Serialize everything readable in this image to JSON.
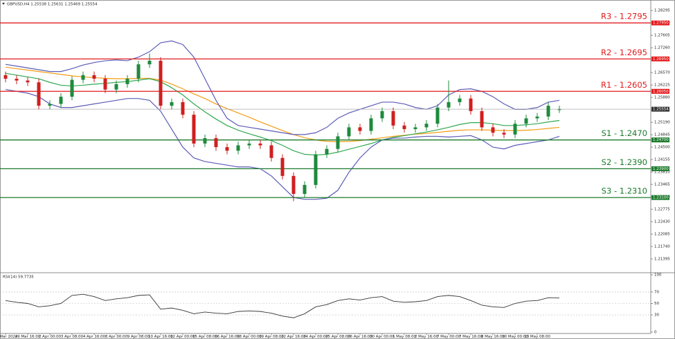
{
  "chart_data": [
    {
      "type": "candlestick",
      "title": "GBPUSD,H4  1.25538 1.25631 1.25469 1.25554",
      "categories": [
        "28 Mar 2024",
        null,
        "29 Mar 16:00",
        null,
        "2 Apr 00:00",
        null,
        "3 Apr 08:00",
        null,
        "4 Apr 16:00",
        null,
        "8 Apr 00:00",
        null,
        "9 Apr 08:00",
        null,
        "10 Apr 16:00",
        null,
        "12 Apr 00:00",
        null,
        "15 Apr 08:00",
        null,
        "16 Apr 16:00",
        null,
        "18 Apr 00:00",
        null,
        "19 Apr 08:00",
        null,
        "22 Apr 16:00",
        null,
        "24 Apr 00:00",
        null,
        "25 Apr 08:00",
        null,
        "26 Apr 16:00",
        null,
        "30 Apr 00:00",
        null,
        "1 May 08:00",
        null,
        "2 May 16:00",
        null,
        "7 May 00:00",
        null,
        "7 May 16:00",
        null,
        "8 May 16:00",
        null,
        "10 May 00:00",
        null,
        "13 May 08:00",
        null,
        null
      ],
      "open": [
        1.265,
        1.264,
        1.2635,
        1.263,
        1.2565,
        1.257,
        1.259,
        1.2637,
        1.265,
        1.264,
        1.261,
        1.2625,
        1.264,
        1.268,
        1.269,
        1.2565,
        1.2575,
        1.254,
        1.246,
        1.2475,
        1.245,
        1.244,
        1.2455,
        1.246,
        1.2455,
        1.242,
        1.237,
        1.232,
        1.2345,
        1.243,
        1.2445,
        1.248,
        1.2505,
        1.2495,
        1.253,
        1.255,
        1.251,
        1.25,
        1.2505,
        1.2515,
        1.256,
        1.2575,
        1.2585,
        1.255,
        1.2505,
        1.249,
        1.2485,
        1.2515,
        1.253,
        1.2535,
        1.2554
      ],
      "high": [
        1.266,
        1.265,
        1.2645,
        1.264,
        1.258,
        1.26,
        1.2647,
        1.266,
        1.266,
        1.265,
        1.2635,
        1.265,
        1.269,
        1.271,
        1.27,
        1.2585,
        1.2585,
        1.255,
        1.2485,
        1.2485,
        1.246,
        1.2465,
        1.247,
        1.247,
        1.2465,
        1.243,
        1.238,
        1.2355,
        1.244,
        1.2455,
        1.249,
        1.2515,
        1.2515,
        1.254,
        1.256,
        1.256,
        1.252,
        1.2515,
        1.2525,
        1.257,
        1.2635,
        1.2595,
        1.2595,
        1.256,
        1.2515,
        1.25,
        1.2525,
        1.254,
        1.2545,
        1.2575,
        1.2565
      ],
      "low": [
        1.263,
        1.2625,
        1.262,
        1.2555,
        1.2555,
        1.256,
        1.258,
        1.2627,
        1.263,
        1.26,
        1.26,
        1.2615,
        1.263,
        1.267,
        1.2555,
        1.2555,
        1.253,
        1.245,
        1.245,
        1.244,
        1.243,
        1.243,
        1.2445,
        1.2445,
        1.241,
        1.236,
        1.23,
        1.231,
        1.2335,
        1.242,
        1.2435,
        1.247,
        1.2485,
        1.2485,
        1.252,
        1.25,
        1.249,
        1.249,
        1.2495,
        1.2505,
        1.255,
        1.2565,
        1.254,
        1.2495,
        1.248,
        1.2475,
        1.2475,
        1.2505,
        1.252,
        1.2525,
        1.2545
      ],
      "close": [
        1.264,
        1.2635,
        1.263,
        1.2565,
        1.257,
        1.259,
        1.2637,
        1.265,
        1.264,
        1.261,
        1.2625,
        1.264,
        1.268,
        1.269,
        1.2565,
        1.2575,
        1.254,
        1.246,
        1.2475,
        1.245,
        1.244,
        1.2455,
        1.246,
        1.2455,
        1.242,
        1.237,
        1.232,
        1.2345,
        1.243,
        1.2445,
        1.248,
        1.2505,
        1.2495,
        1.253,
        1.255,
        1.251,
        1.25,
        1.2505,
        1.2515,
        1.256,
        1.2575,
        1.2585,
        1.255,
        1.2505,
        1.249,
        1.2485,
        1.2515,
        1.253,
        1.2535,
        1.2565,
        1.2555
      ],
      "up_color": "#1e8a3c",
      "down_color": "#d01f1f",
      "series": [
        {
          "color": "#f39c12",
          "values": [
            1.2672,
            1.2668,
            1.2664,
            1.266,
            1.2656,
            1.2652,
            1.2648,
            1.2645,
            1.2643,
            1.2641,
            1.264,
            1.264,
            1.2641,
            1.2641,
            1.2636,
            1.2625,
            1.2612,
            1.2598,
            1.2585,
            1.257,
            1.2557,
            1.2545,
            1.2533,
            1.252,
            1.2508,
            1.2496,
            1.2485,
            1.2476,
            1.247,
            1.2466,
            1.2465,
            1.2466,
            1.2468,
            1.2472,
            1.2476,
            1.248,
            1.2483,
            1.2486,
            1.2488,
            1.2491,
            1.2494,
            1.2497,
            1.2498,
            1.2498,
            1.2497,
            1.2496,
            1.2496,
            1.2497,
            1.2499,
            1.2502,
            1.2505
          ]
        },
        {
          "color": "#2ea84f",
          "values": [
            1.2655,
            1.265,
            1.2645,
            1.264,
            1.263,
            1.2622,
            1.262,
            1.2622,
            1.2625,
            1.2627,
            1.263,
            1.2632,
            1.2636,
            1.264,
            1.2632,
            1.2615,
            1.2595,
            1.257,
            1.2548,
            1.2528,
            1.251,
            1.2497,
            1.2487,
            1.2478,
            1.2468,
            1.2455,
            1.244,
            1.243,
            1.2428,
            1.243,
            1.2436,
            1.2444,
            1.2452,
            1.246,
            1.247,
            1.2477,
            1.2482,
            1.2487,
            1.2492,
            1.2498,
            1.2505,
            1.2513,
            1.2518,
            1.2518,
            1.2515,
            1.251,
            1.251,
            1.2512,
            1.2515,
            1.252,
            1.2524
          ]
        },
        {
          "color": "#5b5bb8",
          "values": [
            1.268,
            1.2675,
            1.267,
            1.2665,
            1.266,
            1.266,
            1.2668,
            1.2678,
            1.2685,
            1.269,
            1.2692,
            1.269,
            1.27,
            1.2715,
            1.274,
            1.2745,
            1.2735,
            1.27,
            1.264,
            1.258,
            1.253,
            1.251,
            1.2505,
            1.25,
            1.2495,
            1.249,
            1.2485,
            1.2485,
            1.249,
            1.2505,
            1.253,
            1.2545,
            1.2555,
            1.2565,
            1.2575,
            1.2575,
            1.257,
            1.256,
            1.2555,
            1.2565,
            1.2595,
            1.261,
            1.2612,
            1.2605,
            1.259,
            1.257,
            1.2555,
            1.2555,
            1.256,
            1.2575,
            1.258
          ]
        },
        {
          "color": "#5b5bb8",
          "values": [
            1.261,
            1.2605,
            1.26,
            1.259,
            1.257,
            1.256,
            1.256,
            1.2565,
            1.257,
            1.2575,
            1.258,
            1.2585,
            1.2585,
            1.258,
            1.255,
            1.25,
            1.245,
            1.242,
            1.241,
            1.2405,
            1.24,
            1.2395,
            1.2395,
            1.239,
            1.237,
            1.234,
            1.231,
            1.2305,
            1.2305,
            1.2308,
            1.233,
            1.238,
            1.242,
            1.245,
            1.247,
            1.2475,
            1.2475,
            1.2478,
            1.248,
            1.248,
            1.2478,
            1.248,
            1.2482,
            1.247,
            1.245,
            1.2445,
            1.2455,
            1.246,
            1.2465,
            1.247,
            1.248
          ]
        }
      ],
      "levels": [
        {
          "label": "R3 - 1.2795",
          "value": 1.2795,
          "value_label": "1.27950",
          "color": "#e31a1c"
        },
        {
          "label": "R2 - 1.2695",
          "value": 1.2695,
          "value_label": "1.26950",
          "color": "#e31a1c"
        },
        {
          "label": "R1 - 1.2605",
          "value": 1.2605,
          "value_label": "1.26050",
          "color": "#e31a1c"
        },
        {
          "label": "S1 - 1.2470",
          "value": 1.247,
          "value_label": "1.24700",
          "color": "#1b7a2b"
        },
        {
          "label": "S2 - 1.2390",
          "value": 1.239,
          "value_label": "1.23900",
          "color": "#1b7a2b"
        },
        {
          "label": "S3 - 1.2310",
          "value": 1.231,
          "value_label": "1.23100",
          "color": "#1b7a2b"
        }
      ],
      "last_price": 1.25554,
      "ylim": [
        1.2105,
        1.2851
      ],
      "yticks": [
        1.28295,
        {
          "value": 1.2795,
          "label": "1.27950"
        },
        1.27605,
        {
          "value": 1.2726,
          "label": "1.27260"
        },
        1.26915,
        {
          "value": 1.2657,
          "label": "1.26570"
        },
        1.26225,
        {
          "value": 1.2588,
          "label": "1.25880"
        },
        1.25535,
        {
          "value": 1.2519,
          "label": "1.25190"
        },
        1.24845,
        {
          "value": 1.245,
          "label": "1.24500"
        },
        1.24155,
        {
          "value": 1.2381,
          "label": "1.23810"
        },
        1.23465,
        {
          "value": 1.2312,
          "label": "1.23120"
        },
        1.22775,
        {
          "value": 1.2243,
          "label": "1.22430"
        },
        1.22085,
        {
          "value": 1.2174,
          "label": "1.21740"
        },
        1.21395
      ]
    },
    {
      "type": "line",
      "title": "RSI(14) 59.7735",
      "color": "#333333",
      "values": [
        55,
        52,
        50,
        44,
        46,
        50,
        64,
        66,
        62,
        55,
        58,
        60,
        64,
        65,
        40,
        42,
        38,
        32,
        35,
        33,
        32,
        36,
        37,
        36,
        33,
        28,
        25,
        32,
        44,
        48,
        55,
        58,
        56,
        60,
        62,
        54,
        52,
        53,
        55,
        62,
        64,
        62,
        55,
        47,
        44,
        43,
        50,
        54,
        55,
        60,
        59.7735
      ],
      "ylim": [
        0,
        100
      ],
      "yticks": [
        100,
        70,
        50,
        30,
        0
      ]
    }
  ]
}
